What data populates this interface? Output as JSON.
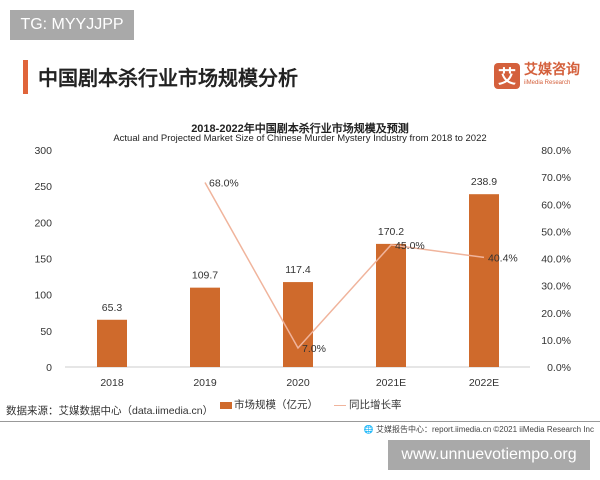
{
  "watermarks": {
    "top": "TG: MYYJJPP",
    "bottom": "www.unnuevotiempo.org"
  },
  "header": {
    "title": "中国剧本杀行业市场规模分析",
    "logo_cn": "艾媒咨询",
    "logo_en": "iiMedia Research",
    "logo_mark": "艾"
  },
  "chart_data": {
    "type": "bar+line",
    "title": "2018-2022年中国剧本杀行业市场规模及预测",
    "subtitle": "Actual and Projected Market Size  of Chinese Murder Mystery Industry from 2018 to 2022",
    "categories": [
      "2018",
      "2019",
      "2020",
      "2021E",
      "2022E"
    ],
    "series": [
      {
        "name": "市场规模（亿元）",
        "type": "bar",
        "axis": "left",
        "values": [
          65.3,
          109.7,
          117.4,
          170.2,
          238.9
        ],
        "labels": [
          "65.3",
          "109.7",
          "117.4",
          "170.2",
          "238.9"
        ],
        "color": "#cf6a2c"
      },
      {
        "name": "同比增长率",
        "type": "line",
        "axis": "right",
        "values": [
          null,
          68.0,
          7.0,
          45.0,
          40.4
        ],
        "labels": [
          "",
          "68.0%",
          "7.0%",
          "45.0%",
          "40.4%"
        ],
        "color": "#f0b49c"
      }
    ],
    "ylim_left": [
      0,
      300
    ],
    "yticks_left": [
      "0",
      "50",
      "100",
      "150",
      "200",
      "250",
      "300"
    ],
    "ylim_right": [
      0,
      80
    ],
    "yticks_right": [
      "0.0%",
      "10.0%",
      "20.0%",
      "30.0%",
      "40.0%",
      "50.0%",
      "60.0%",
      "70.0%",
      "80.0%"
    ],
    "grid": false,
    "legend": "bottom"
  },
  "footer": {
    "source": "数据来源：艾媒数据中心（data.iimedia.cn）",
    "credit": "艾媒报告中心：report.iimedia.cn   ©2021  iiMedia Research  Inc"
  }
}
